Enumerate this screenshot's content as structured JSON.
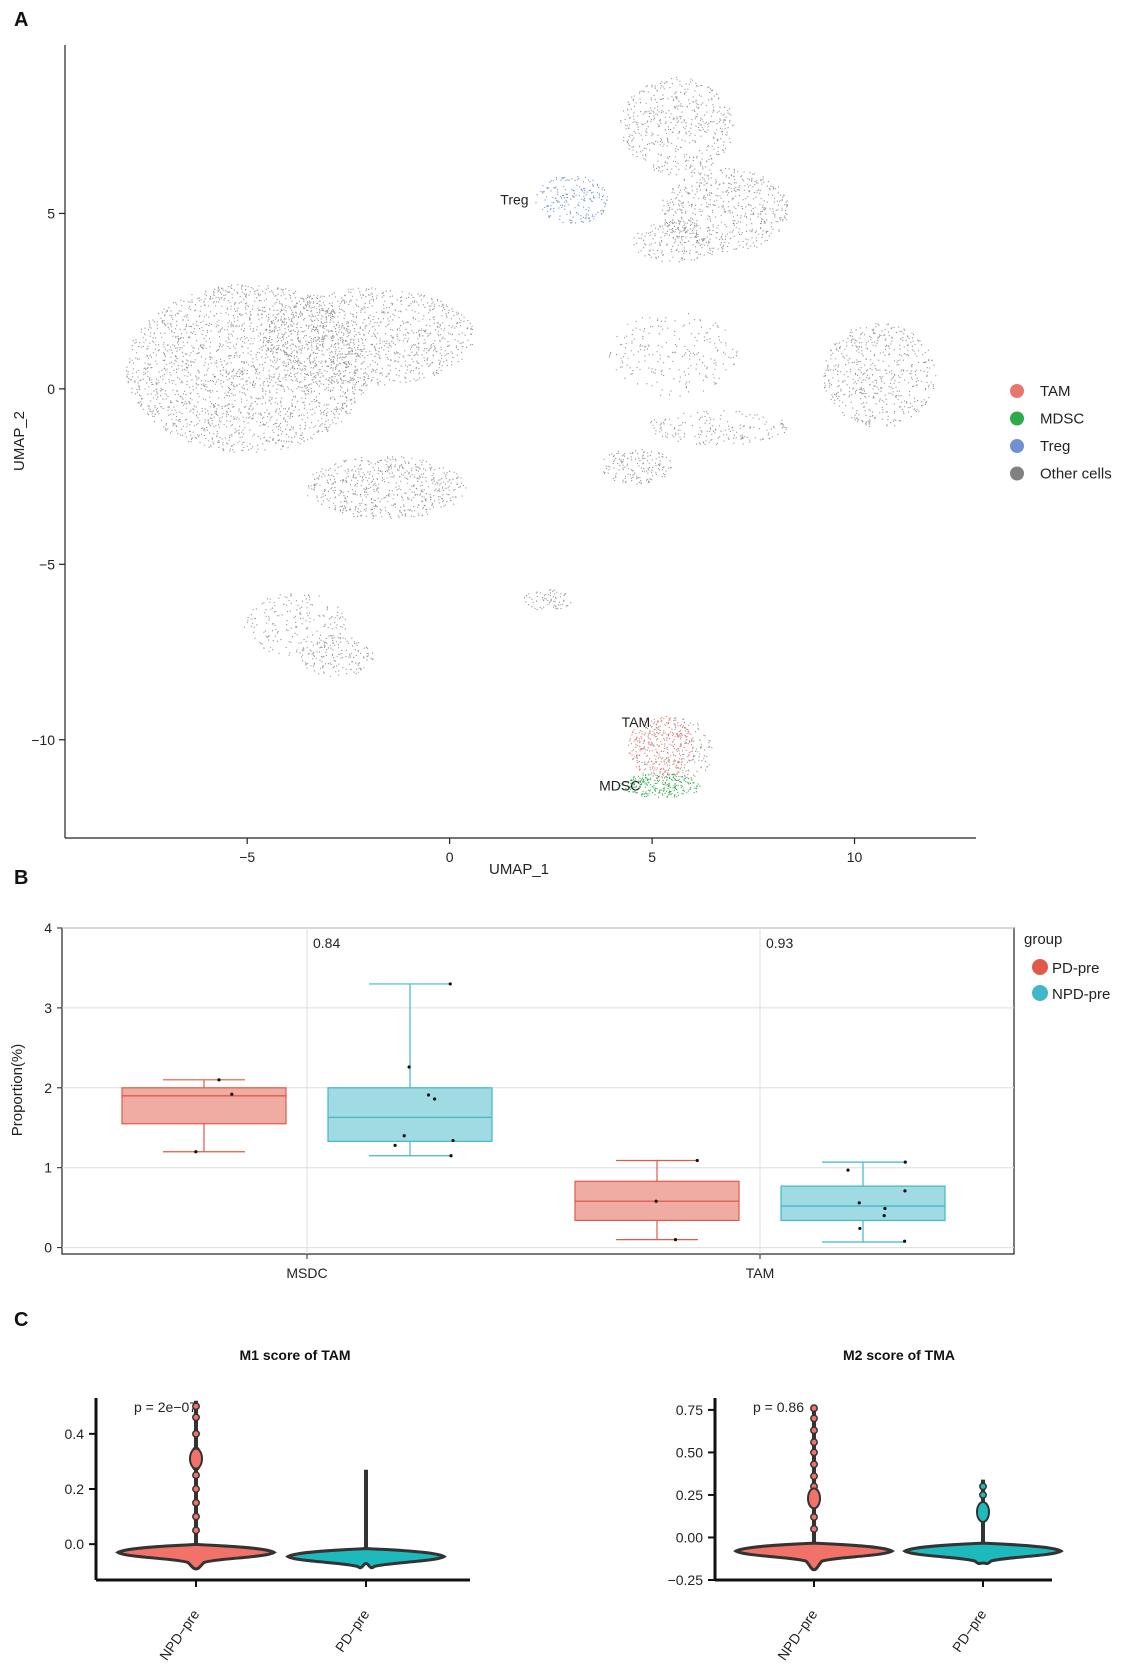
{
  "figure": {
    "panels": [
      "A",
      "B",
      "C"
    ]
  },
  "chart_data": [
    {
      "panel": "A",
      "type": "scatter",
      "title": "",
      "xlabel": "UMAP_1",
      "ylabel": "UMAP_2",
      "xlim": [
        -9.5,
        13
      ],
      "ylim": [
        -12.8,
        9.8
      ],
      "xticks": [
        -5,
        0,
        5,
        10
      ],
      "yticks": [
        -10,
        -5,
        0,
        5
      ],
      "xtick_labels": [
        "−5",
        "0",
        "5",
        "10"
      ],
      "ytick_labels": [
        "−10",
        "−5",
        "0",
        "5"
      ],
      "legend_position": "right",
      "series": [
        {
          "name": "TAM",
          "color": "#E8776B"
        },
        {
          "name": "MDSC",
          "color": "#2EAA4A"
        },
        {
          "name": "Treg",
          "color": "#6F91D1"
        },
        {
          "name": "Other cells",
          "color": "#808080"
        }
      ],
      "annotations": [
        {
          "text": "Treg",
          "x": 1.6,
          "y": 5.4
        },
        {
          "text": "TAM",
          "x": 4.6,
          "y": -9.5
        },
        {
          "text": "MDSC",
          "x": 4.2,
          "y": -11.3
        }
      ],
      "clusters": [
        {
          "cell": "Other cells",
          "cx": -5.0,
          "cy": 0.6,
          "rx": 3.0,
          "ry": 2.4,
          "n": 2200
        },
        {
          "cell": "Other cells",
          "cx": -2.0,
          "cy": 1.5,
          "rx": 2.6,
          "ry": 1.4,
          "n": 1000
        },
        {
          "cell": "Other cells",
          "cx": -1.6,
          "cy": -2.8,
          "rx": 2.0,
          "ry": 0.9,
          "n": 600
        },
        {
          "cell": "Other cells",
          "cx": -3.8,
          "cy": -6.7,
          "rx": 1.3,
          "ry": 0.9,
          "n": 200
        },
        {
          "cell": "Other cells",
          "cx": -2.8,
          "cy": -7.6,
          "rx": 0.9,
          "ry": 0.6,
          "n": 150
        },
        {
          "cell": "Other cells",
          "cx": 5.6,
          "cy": 7.5,
          "rx": 1.4,
          "ry": 1.4,
          "n": 500
        },
        {
          "cell": "Other cells",
          "cx": 6.8,
          "cy": 5.1,
          "rx": 1.6,
          "ry": 1.2,
          "n": 550
        },
        {
          "cell": "Other cells",
          "cx": 5.6,
          "cy": 4.2,
          "rx": 1.1,
          "ry": 0.6,
          "n": 180
        },
        {
          "cell": "Other cells",
          "cx": 10.6,
          "cy": 0.4,
          "rx": 1.4,
          "ry": 1.5,
          "n": 550
        },
        {
          "cell": "Other cells",
          "cx": 5.5,
          "cy": 1.0,
          "rx": 1.6,
          "ry": 1.2,
          "n": 220
        },
        {
          "cell": "Other cells",
          "cx": 4.6,
          "cy": -2.2,
          "rx": 0.9,
          "ry": 0.5,
          "n": 160
        },
        {
          "cell": "Other cells",
          "cx": 6.6,
          "cy": -1.1,
          "rx": 1.8,
          "ry": 0.5,
          "n": 180
        },
        {
          "cell": "Other cells",
          "cx": 2.4,
          "cy": -6.0,
          "rx": 0.6,
          "ry": 0.3,
          "n": 70
        },
        {
          "cell": "Other cells",
          "cx": 5.5,
          "cy": -10.3,
          "rx": 1.0,
          "ry": 1.0,
          "n": 240
        },
        {
          "cell": "Treg",
          "cx": 3.0,
          "cy": 5.4,
          "rx": 0.9,
          "ry": 0.7,
          "n": 200
        },
        {
          "cell": "TAM",
          "cx": 5.2,
          "cy": -10.2,
          "rx": 0.8,
          "ry": 0.9,
          "n": 260
        },
        {
          "cell": "MDSC",
          "cx": 5.2,
          "cy": -11.3,
          "rx": 1.0,
          "ry": 0.35,
          "n": 240
        }
      ]
    },
    {
      "panel": "B",
      "type": "box",
      "title": "",
      "xlabel": "",
      "ylabel": "Proportion(%)",
      "ylim": [
        -0.08,
        4.0
      ],
      "yticks": [
        0,
        1,
        2,
        3,
        4
      ],
      "categories": [
        "MSDC",
        "TAM"
      ],
      "pvalues": [
        "0.84",
        "0.93"
      ],
      "legend_title": "group",
      "legend_position": "right",
      "series": [
        {
          "name": "PD-pre",
          "color": "#E05A47",
          "boxes": [
            {
              "min": 1.2,
              "q1": 1.55,
              "median": 1.9,
              "q3": 2.0,
              "max": 2.1,
              "points": [
                2.1,
                1.92,
                1.2
              ]
            },
            {
              "min": 0.1,
              "q1": 0.34,
              "median": 0.58,
              "q3": 0.83,
              "max": 1.09,
              "points": [
                1.09,
                0.58,
                0.1
              ]
            }
          ]
        },
        {
          "name": "NPD-pre",
          "color": "#41B7C8",
          "boxes": [
            {
              "min": 1.15,
              "q1": 1.33,
              "median": 1.63,
              "q3": 2.0,
              "max": 3.3,
              "points": [
                3.3,
                2.26,
                1.91,
                1.86,
                1.4,
                1.34,
                1.28,
                1.15
              ]
            },
            {
              "min": 0.07,
              "q1": 0.34,
              "median": 0.52,
              "q3": 0.77,
              "max": 1.07,
              "points": [
                1.07,
                0.97,
                0.71,
                0.56,
                0.49,
                0.4,
                0.24,
                0.08
              ]
            }
          ]
        }
      ]
    },
    {
      "panel": "C",
      "type": "violin",
      "title": "M1 score of TAM",
      "xlabel": "",
      "ylabel": "",
      "ylim": [
        -0.13,
        0.53
      ],
      "yticks": [
        0.0,
        0.2,
        0.4
      ],
      "ytick_labels": [
        "0.0",
        "0.2",
        "0.4"
      ],
      "categories": [
        "NPD−pre",
        "PD−pre"
      ],
      "pvalue": "p = 2e−07",
      "series": [
        {
          "name": "NPD−pre",
          "color": "#F2726A",
          "min": -0.09,
          "max": 0.52,
          "mode": -0.03,
          "upper_blobs": [
            0.31
          ],
          "tail_points": [
            0.05,
            0.1,
            0.15,
            0.2,
            0.25,
            0.28,
            0.34,
            0.4,
            0.46,
            0.5
          ]
        },
        {
          "name": "PD−pre",
          "color": "#1DBABD",
          "min": -0.07,
          "max": 0.27,
          "mode": -0.045,
          "upper_blobs": [],
          "tail_points": []
        }
      ]
    },
    {
      "panel": "C",
      "type": "violin",
      "title": "M2 score of TMA",
      "xlabel": "",
      "ylabel": "",
      "ylim": [
        -0.25,
        0.82
      ],
      "yticks": [
        -0.25,
        0.0,
        0.25,
        0.5,
        0.75
      ],
      "ytick_labels": [
        "−0.25",
        "0.00",
        "0.25",
        "0.50",
        "0.75"
      ],
      "categories": [
        "NPD−pre",
        "PD−pre"
      ],
      "pvalue": "p = 0.86",
      "series": [
        {
          "name": "NPD−pre",
          "color": "#F2726A",
          "min": -0.19,
          "max": 0.78,
          "mode": -0.08,
          "upper_blobs": [
            0.23
          ],
          "tail_points": [
            0.05,
            0.12,
            0.3,
            0.36,
            0.43,
            0.5,
            0.56,
            0.63,
            0.7,
            0.76
          ]
        },
        {
          "name": "PD−pre",
          "color": "#1DBABD",
          "min": -0.15,
          "max": 0.34,
          "mode": -0.08,
          "upper_blobs": [
            0.15
          ],
          "tail_points": [
            0.25,
            0.3
          ]
        }
      ]
    }
  ]
}
